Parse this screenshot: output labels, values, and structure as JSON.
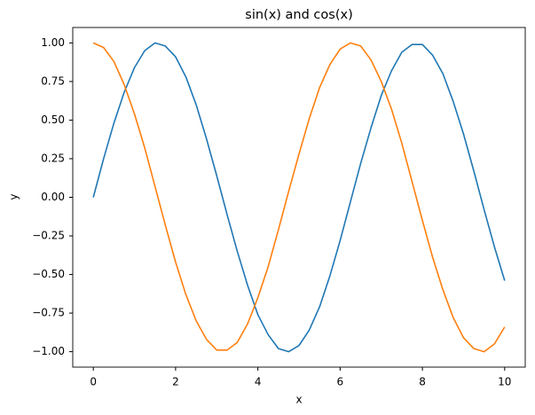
{
  "chart_data": {
    "type": "line",
    "title": "sin(x) and cos(x)",
    "x_label": "x",
    "y_label": "y",
    "x": [
      0,
      0.25,
      0.5,
      0.75,
      1,
      1.25,
      1.5,
      1.75,
      2,
      2.25,
      2.5,
      2.75,
      3,
      3.25,
      3.5,
      3.75,
      4,
      4.25,
      4.5,
      4.75,
      5,
      5.25,
      5.5,
      5.75,
      6,
      6.25,
      6.5,
      6.75,
      7,
      7.25,
      7.5,
      7.75,
      8,
      8.25,
      8.5,
      8.75,
      9,
      9.25,
      9.5,
      9.75,
      10
    ],
    "series": [
      {
        "color": "#1f77b4",
        "values": [
          0.0,
          0.25,
          0.48,
          0.68,
          0.84,
          0.95,
          1.0,
          0.98,
          0.91,
          0.78,
          0.6,
          0.38,
          0.14,
          -0.11,
          -0.35,
          -0.57,
          -0.76,
          -0.89,
          -0.98,
          -1.0,
          -0.96,
          -0.86,
          -0.71,
          -0.51,
          -0.28,
          -0.03,
          0.22,
          0.45,
          0.66,
          0.82,
          0.94,
          0.99,
          0.99,
          0.92,
          0.8,
          0.62,
          0.41,
          0.17,
          -0.08,
          -0.32,
          -0.54
        ]
      },
      {
        "color": "#ff7f0e",
        "values": [
          1.0,
          0.97,
          0.88,
          0.73,
          0.54,
          0.32,
          0.07,
          -0.18,
          -0.42,
          -0.63,
          -0.8,
          -0.92,
          -0.99,
          -0.99,
          -0.94,
          -0.82,
          -0.65,
          -0.45,
          -0.21,
          0.04,
          0.28,
          0.51,
          0.71,
          0.86,
          0.96,
          1.0,
          0.98,
          0.89,
          0.75,
          0.57,
          0.35,
          0.1,
          -0.15,
          -0.39,
          -0.6,
          -0.78,
          -0.91,
          -0.98,
          -1.0,
          -0.95,
          -0.84
        ]
      }
    ],
    "xlim": [
      -0.5,
      10.5
    ],
    "ylim": [
      -1.1,
      1.1
    ],
    "xticks": [
      0,
      2,
      4,
      6,
      8,
      10
    ],
    "yticks": [
      {
        "value": -1,
        "label": "−1.00"
      },
      {
        "value": -0.75,
        "label": "−0.75"
      },
      {
        "value": -0.5,
        "label": "−0.50"
      },
      {
        "value": -0.25,
        "label": "−0.25"
      },
      {
        "value": 0,
        "label": "0.00"
      },
      {
        "value": 0.25,
        "label": "0.25"
      },
      {
        "value": 0.5,
        "label": "0.50"
      },
      {
        "value": 0.75,
        "label": "0.75"
      },
      {
        "value": 1,
        "label": "1.00"
      }
    ],
    "grid": false
  }
}
